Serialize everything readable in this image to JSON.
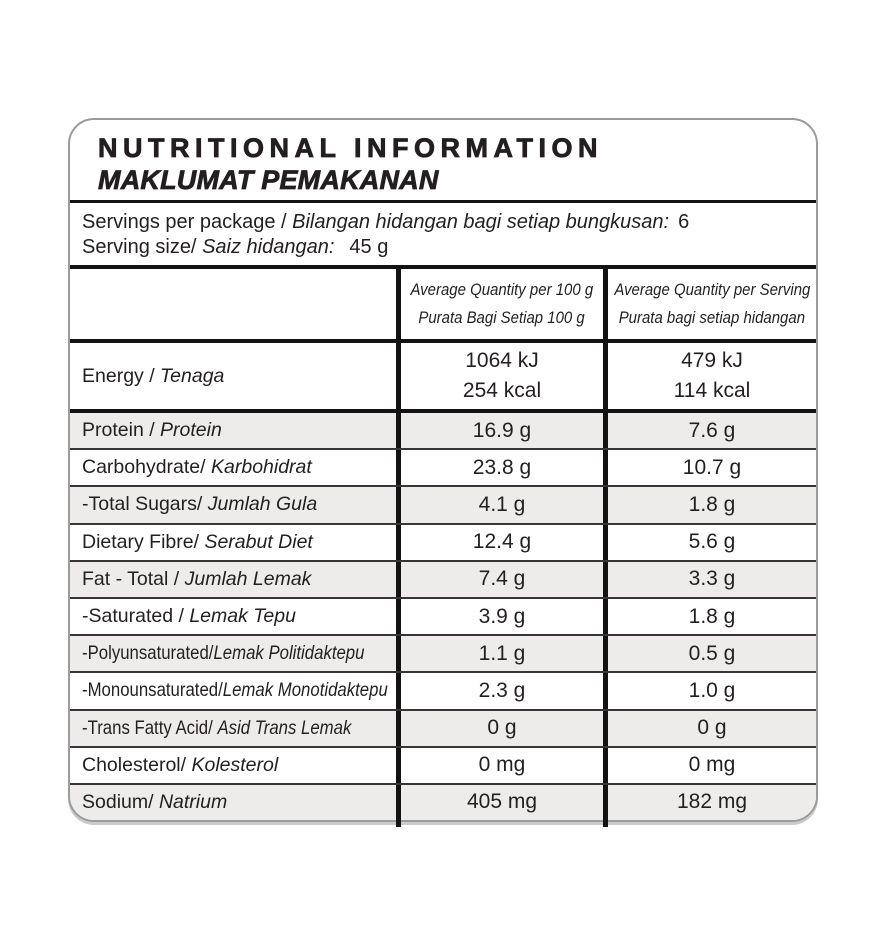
{
  "panel": {
    "title_en": "NUTRITIONAL INFORMATION",
    "title_my": "MAKLUMAT PEMAKANAN"
  },
  "servings": {
    "per_package_en": "Servings per package / ",
    "per_package_my": "Bilangan hidangan bagi setiap bungkusan:",
    "per_package_value": "6",
    "size_en": "Serving size/ ",
    "size_my": "Saiz hidangan:",
    "size_value": "45 g"
  },
  "table": {
    "columns": {
      "per100_line1": "Average Quantity per 100 g",
      "per100_line2": "Purata Bagi Setiap 100 g",
      "serving_line1": "Average Quantity per Serving",
      "serving_line2": "Purata bagi setiap hidangan"
    },
    "energy": {
      "label_en": "Energy / ",
      "label_my": "Tenaga",
      "per100_kj": "1064 kJ",
      "per100_kcal": "254 kcal",
      "serving_kj": "479 kJ",
      "serving_kcal": "114 kcal"
    },
    "rows": [
      {
        "label_en": "Protein / ",
        "label_my": "Protein",
        "per100": "16.9 g",
        "per_serving": "7.6 g"
      },
      {
        "label_en": "Carbohydrate/ ",
        "label_my": "Karbohidrat",
        "per100": "23.8 g",
        "per_serving": "10.7 g"
      },
      {
        "label_en": "-Total Sugars/ ",
        "label_my": "Jumlah Gula",
        "per100": "4.1 g",
        "per_serving": "1.8 g"
      },
      {
        "label_en": "Dietary Fibre/ ",
        "label_my": "Serabut Diet",
        "per100": "12.4 g",
        "per_serving": "5.6 g"
      },
      {
        "label_en": "Fat - Total / ",
        "label_my": "Jumlah Lemak",
        "per100": "7.4 g",
        "per_serving": "3.3 g"
      },
      {
        "label_en": "-Saturated / ",
        "label_my": "Lemak Tepu",
        "per100": "3.9 g",
        "per_serving": "1.8 g"
      },
      {
        "label_en": "-Polyunsaturated/",
        "label_my": "Lemak Politidaktepu",
        "per100": "1.1 g",
        "per_serving": "0.5 g"
      },
      {
        "label_en": "-Monounsaturated/",
        "label_my": "Lemak Monotidaktepu",
        "per100": "2.3 g",
        "per_serving": "1.0 g"
      },
      {
        "label_en": "-Trans Fatty Acid/ ",
        "label_my": "Asid Trans Lemak",
        "per100": "0 g",
        "per_serving": "0 g"
      },
      {
        "label_en": "Cholesterol/ ",
        "label_my": "Kolesterol",
        "per100": "0 mg",
        "per_serving": "0 mg"
      },
      {
        "label_en": "Sodium/ ",
        "label_my": "Natrium",
        "per100": "405 mg",
        "per_serving": "182 mg"
      }
    ]
  },
  "colors": {
    "text": "#231f20",
    "shaded_row": "#edecea",
    "thick_rule": "#151213",
    "thin_rule": "#393536",
    "box_border": "#9b9b9b"
  }
}
